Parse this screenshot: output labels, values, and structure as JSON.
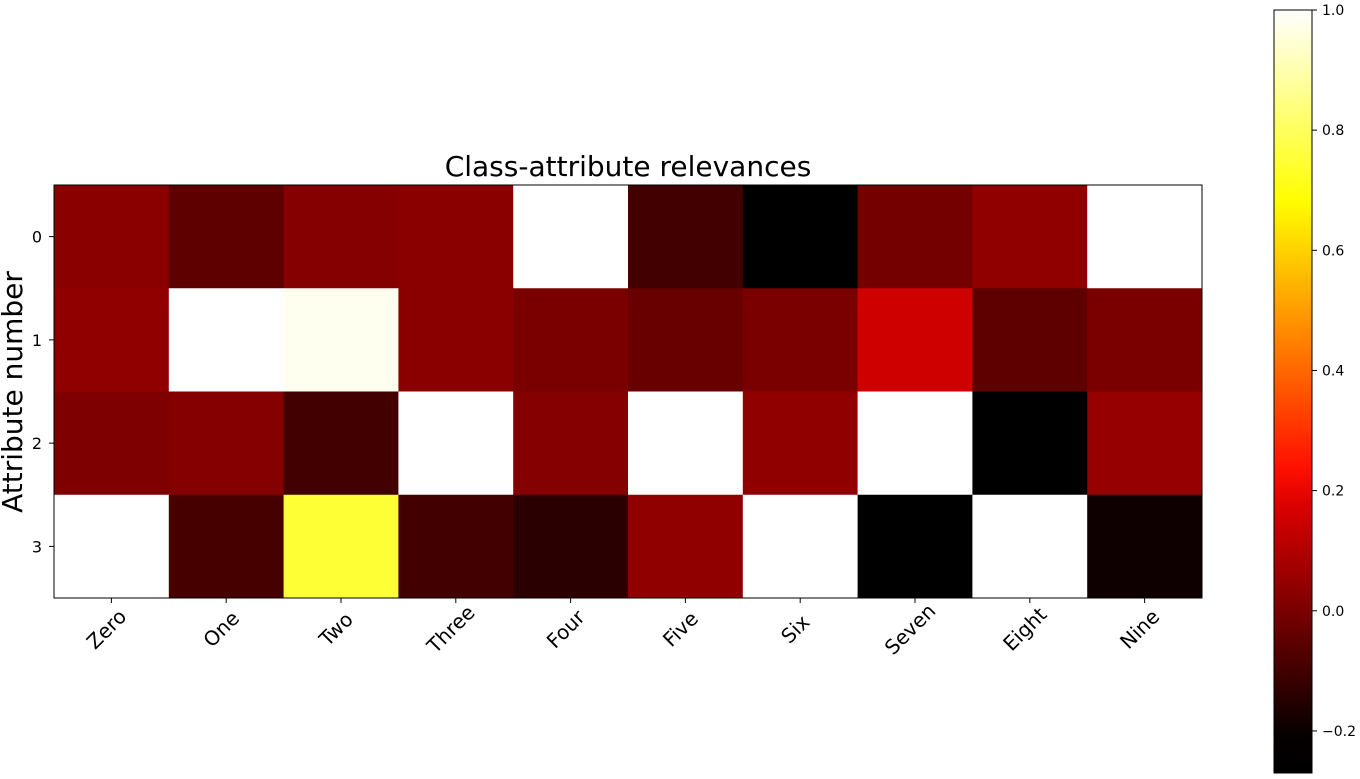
{
  "chart_data": {
    "type": "heatmap",
    "title": "Class-attribute relevances",
    "xlabel": "",
    "ylabel": "Attribute number",
    "x_categories": [
      "Zero",
      "One",
      "Two",
      "Three",
      "Four",
      "Five",
      "Six",
      "Seven",
      "Eight",
      "Nine"
    ],
    "y_categories": [
      "0",
      "1",
      "2",
      "3"
    ],
    "values": [
      [
        0.03,
        -0.05,
        0.02,
        0.03,
        1.0,
        -0.1,
        -0.22,
        -0.01,
        0.04,
        1.0
      ],
      [
        0.04,
        1.0,
        0.98,
        0.03,
        0.0,
        -0.03,
        0.0,
        0.15,
        -0.05,
        0.0
      ],
      [
        0.01,
        0.02,
        -0.1,
        1.0,
        0.02,
        1.0,
        0.04,
        1.0,
        -0.27,
        0.05
      ],
      [
        1.0,
        -0.09,
        0.75,
        -0.1,
        -0.14,
        0.04,
        1.0,
        -0.24,
        1.0,
        -0.19
      ]
    ],
    "colormap": "hot",
    "vmin": -0.27,
    "vmax": 1.0,
    "colorbar_ticks": [
      "1.0",
      "0.8",
      "0.6",
      "0.4",
      "0.2",
      "0.0",
      "−0.2"
    ],
    "colorbar_tick_values": [
      1.0,
      0.8,
      0.6,
      0.4,
      0.2,
      0.0,
      -0.2
    ],
    "grid": false
  }
}
